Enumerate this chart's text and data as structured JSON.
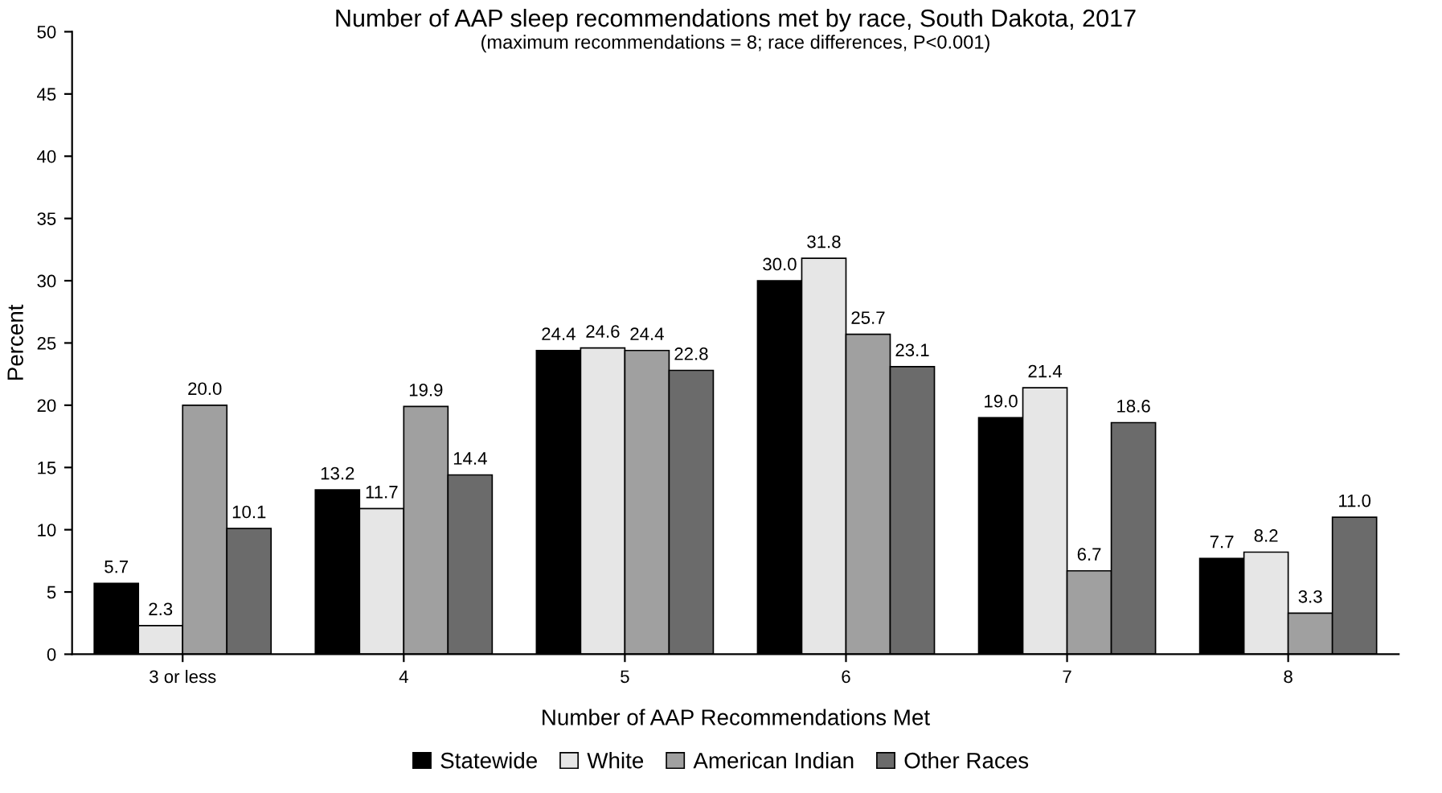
{
  "chart_data": {
    "type": "bar",
    "title": "Number of AAP sleep recommendations met by race, South Dakota, 2017",
    "subtitle": "(maximum recommendations = 8; race differences, P<0.001)",
    "xlabel": "Number of AAP Recommendations Met",
    "ylabel": "Percent",
    "categories": [
      "3 or less",
      "4",
      "5",
      "6",
      "7",
      "8"
    ],
    "series": [
      {
        "name": "Statewide",
        "color": "#000000",
        "values": [
          5.7,
          13.2,
          24.4,
          30.0,
          19.0,
          7.7
        ],
        "value_labels": [
          "5.7",
          "13.2",
          "24.4",
          "30.0",
          "19.0",
          "7.7"
        ]
      },
      {
        "name": "White",
        "color": "#e6e6e6",
        "values": [
          2.3,
          11.7,
          24.6,
          31.8,
          21.4,
          8.2
        ],
        "value_labels": [
          "2.3",
          "11.7",
          "24.6",
          "31.8",
          "21.4",
          "8.2"
        ]
      },
      {
        "name": "American Indian",
        "color": "#a0a0a0",
        "values": [
          20.0,
          19.9,
          24.4,
          25.7,
          6.7,
          3.3
        ],
        "value_labels": [
          "20.0",
          "19.9",
          "24.4",
          "25.7",
          "6.7",
          "3.3"
        ]
      },
      {
        "name": "Other Races",
        "color": "#6b6b6b",
        "values": [
          10.1,
          14.4,
          22.8,
          23.1,
          18.6,
          11.0
        ],
        "value_labels": [
          "10.1",
          "14.4",
          "22.8",
          "23.1",
          "18.6",
          "11.0"
        ]
      }
    ],
    "ylim": [
      0,
      50
    ],
    "yticks": [
      0,
      5,
      10,
      15,
      20,
      25,
      30,
      35,
      40,
      45,
      50
    ],
    "grid": false,
    "legend": "bottom"
  }
}
